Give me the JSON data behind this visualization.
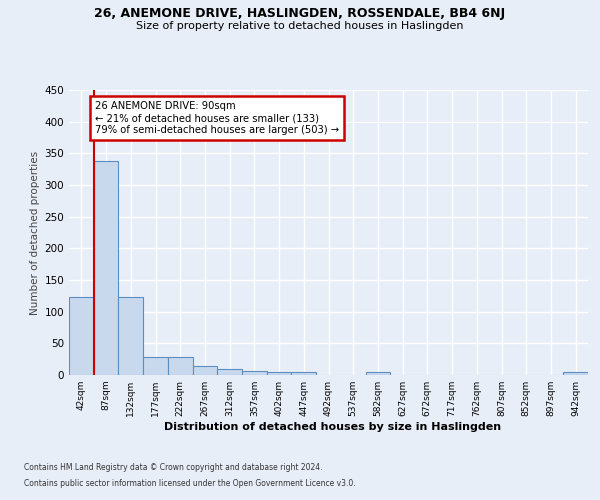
{
  "title1": "26, ANEMONE DRIVE, HASLINGDEN, ROSSENDALE, BB4 6NJ",
  "title2": "Size of property relative to detached houses in Haslingden",
  "xlabel": "Distribution of detached houses by size in Haslingden",
  "ylabel": "Number of detached properties",
  "bar_labels": [
    "42sqm",
    "87sqm",
    "132sqm",
    "177sqm",
    "222sqm",
    "267sqm",
    "312sqm",
    "357sqm",
    "402sqm",
    "447sqm",
    "492sqm",
    "537sqm",
    "582sqm",
    "627sqm",
    "672sqm",
    "717sqm",
    "762sqm",
    "807sqm",
    "852sqm",
    "897sqm",
    "942sqm"
  ],
  "bar_values": [
    123,
    338,
    123,
    29,
    29,
    15,
    9,
    7,
    4,
    4,
    0,
    0,
    5,
    0,
    0,
    0,
    0,
    0,
    0,
    0,
    5
  ],
  "bar_color": "#c8d9ee",
  "bar_edge_color": "#5b8fc4",
  "annotation_line1": "26 ANEMONE DRIVE: 90sqm",
  "annotation_line2": "← 21% of detached houses are smaller (133)",
  "annotation_line3": "79% of semi-detached houses are larger (503) →",
  "annotation_box_facecolor": "#ffffff",
  "annotation_box_edgecolor": "#cc0000",
  "vline_color": "#cc0000",
  "ylim": [
    0,
    450
  ],
  "yticks": [
    0,
    50,
    100,
    150,
    200,
    250,
    300,
    350,
    400,
    450
  ],
  "background_color": "#e8eef8",
  "grid_color": "#d0d8e8",
  "footnote1": "Contains HM Land Registry data © Crown copyright and database right 2024.",
  "footnote2": "Contains public sector information licensed under the Open Government Licence v3.0."
}
